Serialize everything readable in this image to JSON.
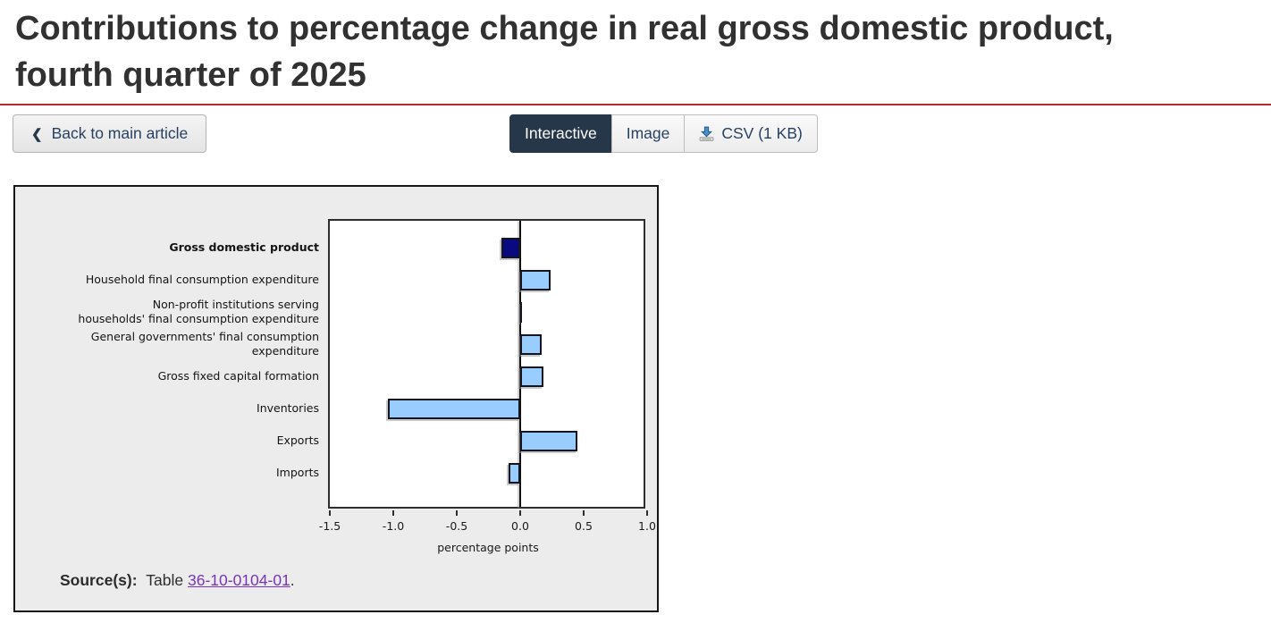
{
  "header": {
    "title_line1": "Contributions to percentage change in real gross domestic product,",
    "title_line2": "fourth quarter of 2025"
  },
  "toolbar": {
    "back_label": "Back to main article",
    "back_icon": "chevron-left",
    "tabs": [
      {
        "label": "Interactive",
        "active": true
      },
      {
        "label": "Image",
        "active": false
      },
      {
        "label": "CSV (1 KB)",
        "active": false,
        "icon": "download-icon"
      }
    ]
  },
  "chart_data": {
    "type": "bar",
    "orientation": "horizontal",
    "categories": [
      "Gross domestic product",
      "Household final consumption expenditure",
      "Non-profit institutions serving households' final consumption expenditure",
      "General governments' final consumption expenditure",
      "Gross fixed capital formation",
      "Inventories",
      "Exports",
      "Imports"
    ],
    "label_lines": [
      [
        "Gross domestic product"
      ],
      [
        "Household final consumption expenditure"
      ],
      [
        "Non-profit institutions serving",
        "households' final consumption expenditure"
      ],
      [
        "General governments' final consumption",
        "expenditure"
      ],
      [
        "Gross fixed capital formation"
      ],
      [
        "Inventories"
      ],
      [
        "Exports"
      ],
      [
        "Imports"
      ]
    ],
    "values": [
      -0.15,
      0.24,
      0.0,
      0.17,
      0.18,
      -1.04,
      0.45,
      -0.09
    ],
    "highlight_index": 0,
    "xlabel": "percentage points",
    "xlim": [
      -1.5,
      1.0
    ],
    "xticks": [
      -1.5,
      -1.0,
      -0.5,
      0.0,
      0.5,
      1.0
    ],
    "xtick_labels": [
      "-1.5",
      "-1.0",
      "-0.5",
      "0.0",
      "0.5",
      "1.0"
    ],
    "grid": false,
    "legend": false,
    "colors": {
      "bar_default": "#99ccff",
      "bar_highlight": "#0a0a80",
      "bar_border": "#15151f"
    }
  },
  "source": {
    "label": "Source(s):",
    "prefix": "Table ",
    "link_text": "36-10-0104-01",
    "suffix": "."
  },
  "theme": {
    "accent_red": "#b02c30",
    "navy": "#26374a",
    "link_blue": "#284162",
    "visited_purple": "#7834bc"
  }
}
